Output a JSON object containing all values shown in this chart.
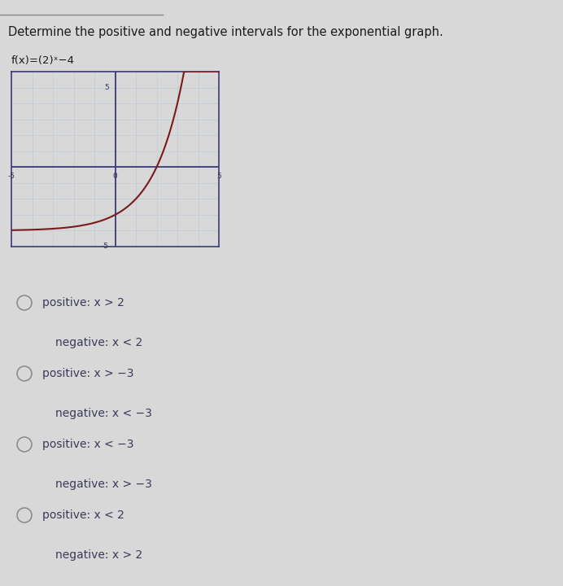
{
  "title": "Determine the positive and negative intervals for the exponential graph.",
  "func_label": "f(x)=(2)ˣ−4",
  "graph": {
    "xlim": [
      -5,
      5
    ],
    "ylim": [
      -5,
      6
    ],
    "grid_color": "#b8c8d8",
    "axis_color": "#3a3a7a",
    "curve_color": "#7a1a1a",
    "curve_linewidth": 1.5,
    "border_color": "#3a3a7a",
    "border_linewidth": 1.2
  },
  "options": [
    [
      "positive: x > 2",
      "negative: x < 2"
    ],
    [
      "positive: x > −3",
      "negative: x < −3"
    ],
    [
      "positive: x < −3",
      "negative: x > −3"
    ],
    [
      "positive: x < 2",
      "negative: x > 2"
    ]
  ],
  "bg_color": "#d8d8d8",
  "title_color": "#1a1a1a",
  "option_color": "#3a3a5a",
  "radio_edgecolor": "#888888",
  "font_size_title": 10.5,
  "font_size_func": 9.5,
  "font_size_option": 10,
  "separator_color": "#888888"
}
